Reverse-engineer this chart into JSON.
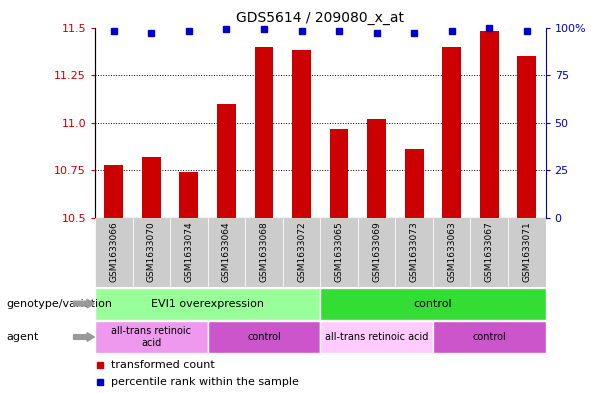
{
  "title": "GDS5614 / 209080_x_at",
  "samples": [
    "GSM1633066",
    "GSM1633070",
    "GSM1633074",
    "GSM1633064",
    "GSM1633068",
    "GSM1633072",
    "GSM1633065",
    "GSM1633069",
    "GSM1633073",
    "GSM1633063",
    "GSM1633067",
    "GSM1633071"
  ],
  "bar_values": [
    10.78,
    10.82,
    10.74,
    11.1,
    11.4,
    11.38,
    10.97,
    11.02,
    10.86,
    11.4,
    11.48,
    11.35
  ],
  "percentile_values": [
    98,
    97,
    98,
    99,
    99,
    98,
    98,
    97,
    97,
    98,
    100,
    98
  ],
  "ylim": [
    10.5,
    11.5
  ],
  "y2lim": [
    0,
    100
  ],
  "yticks": [
    10.5,
    10.75,
    11.0,
    11.25,
    11.5
  ],
  "y2ticks": [
    0,
    25,
    50,
    75,
    100
  ],
  "bar_color": "#cc0000",
  "square_color": "#0000cc",
  "grid_dotted_at": [
    10.75,
    11.0,
    11.25
  ],
  "tick_bg_color": "#cccccc",
  "genotype_groups": [
    {
      "label": "EVI1 overexpression",
      "start": 0,
      "end": 5,
      "color": "#99ff99"
    },
    {
      "label": "control",
      "start": 6,
      "end": 11,
      "color": "#33dd33"
    }
  ],
  "agent_groups": [
    {
      "label": "all-trans retinoic\nacid",
      "start": 0,
      "end": 2,
      "color": "#ee99ee"
    },
    {
      "label": "control",
      "start": 3,
      "end": 5,
      "color": "#cc55cc"
    },
    {
      "label": "all-trans retinoic acid",
      "start": 6,
      "end": 8,
      "color": "#ffccff"
    },
    {
      "label": "control",
      "start": 9,
      "end": 11,
      "color": "#cc55cc"
    }
  ],
  "genotype_label": "genotype/variation",
  "agent_label": "agent",
  "legend_items": [
    {
      "color": "#cc0000",
      "label": "transformed count"
    },
    {
      "color": "#0000cc",
      "label": "percentile rank within the sample"
    }
  ]
}
